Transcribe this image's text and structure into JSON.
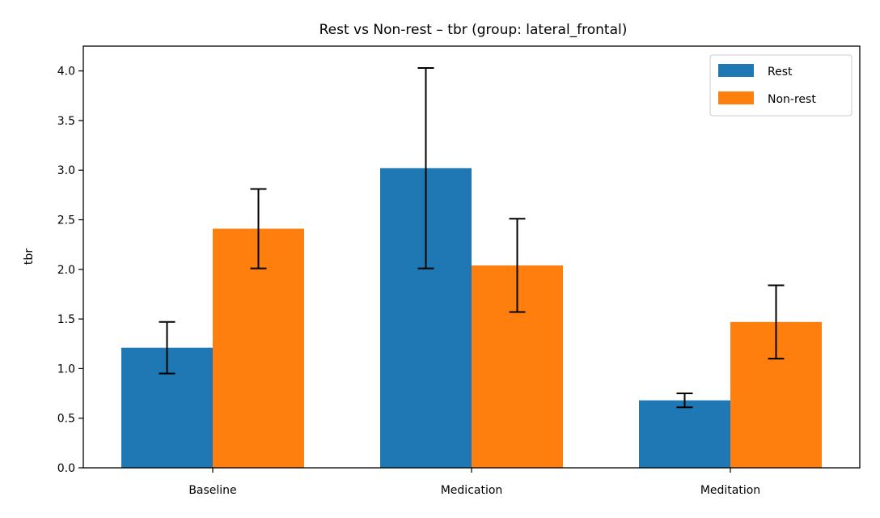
{
  "chart_data": {
    "type": "bar",
    "title": "Rest vs Non-rest – tbr  (group: lateral_frontal)",
    "xlabel": "",
    "ylabel": "tbr",
    "categories": [
      "Baseline",
      "Medication",
      "Meditation"
    ],
    "series": [
      {
        "name": "Rest",
        "color": "#1f77b4",
        "values": [
          1.21,
          3.02,
          0.68
        ],
        "errors": [
          0.26,
          1.01,
          0.07
        ]
      },
      {
        "name": "Non-rest",
        "color": "#ff7f0e",
        "values": [
          2.41,
          2.04,
          1.47
        ],
        "errors": [
          0.4,
          0.47,
          0.37
        ]
      }
    ],
    "ylim": [
      0,
      4.25
    ],
    "yticks": [
      "0.0",
      "0.5",
      "1.0",
      "1.5",
      "2.0",
      "2.5",
      "3.0",
      "3.5",
      "4.0"
    ],
    "grid": false,
    "legend_position": "top-right",
    "error_bars": true
  }
}
